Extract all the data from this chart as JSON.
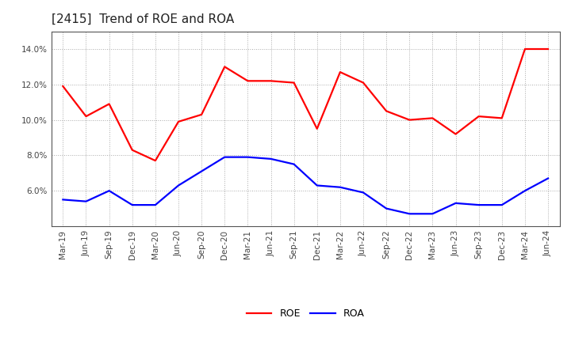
{
  "title": "[2415]  Trend of ROE and ROA",
  "labels": [
    "Mar-19",
    "Jun-19",
    "Sep-19",
    "Dec-19",
    "Mar-20",
    "Jun-20",
    "Sep-20",
    "Dec-20",
    "Mar-21",
    "Jun-21",
    "Sep-21",
    "Dec-21",
    "Mar-22",
    "Jun-22",
    "Sep-22",
    "Dec-22",
    "Mar-23",
    "Jun-23",
    "Sep-23",
    "Dec-23",
    "Mar-24",
    "Jun-24"
  ],
  "roe": [
    11.9,
    10.2,
    10.9,
    8.3,
    7.7,
    9.9,
    10.3,
    13.0,
    12.2,
    12.2,
    12.1,
    9.5,
    12.7,
    12.1,
    10.5,
    10.0,
    10.1,
    9.2,
    10.2,
    10.1,
    14.0,
    14.0
  ],
  "roa": [
    5.5,
    5.4,
    6.0,
    5.2,
    5.2,
    6.3,
    7.1,
    7.9,
    7.9,
    7.8,
    7.5,
    6.3,
    6.2,
    5.9,
    5.0,
    4.7,
    4.7,
    5.3,
    5.2,
    5.2,
    6.0,
    6.7
  ],
  "roe_color": "#ff0000",
  "roa_color": "#0000ff",
  "bg_color": "#ffffff",
  "grid_color": "#aaaaaa",
  "ylim": [
    4.0,
    15.0
  ],
  "yticks": [
    6.0,
    8.0,
    10.0,
    12.0,
    14.0
  ],
  "title_fontsize": 11,
  "legend_labels": [
    "ROE",
    "ROA"
  ],
  "line_width": 1.6,
  "spine_color": "#555555",
  "tick_label_fontsize": 7.5,
  "tick_label_color": "#444444"
}
